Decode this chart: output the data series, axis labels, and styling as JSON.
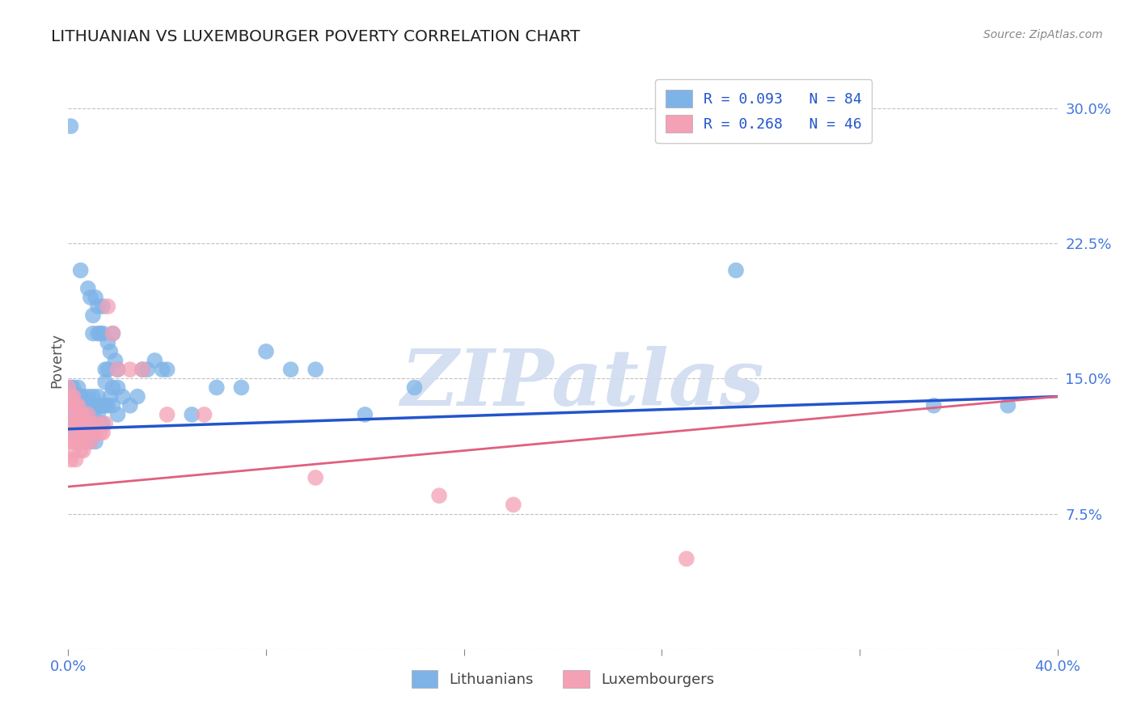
{
  "title": "LITHUANIAN VS LUXEMBOURGER POVERTY CORRELATION CHART",
  "source": "Source: ZipAtlas.com",
  "ylabel": "Poverty",
  "xlim": [
    0.0,
    0.4
  ],
  "ylim": [
    0.0,
    0.32
  ],
  "yticks": [
    0.0,
    0.075,
    0.15,
    0.225,
    0.3
  ],
  "ytick_labels": [
    "",
    "7.5%",
    "15.0%",
    "22.5%",
    "30.0%"
  ],
  "xticks": [
    0.0,
    0.08,
    0.16,
    0.24,
    0.32,
    0.4
  ],
  "xtick_labels": [
    "0.0%",
    "",
    "",
    "",
    "",
    "40.0%"
  ],
  "blue_color": "#7EB3E8",
  "pink_color": "#F4A0B5",
  "blue_line_color": "#2255CC",
  "pink_line_color": "#E0607E",
  "tick_label_color": "#4477DD",
  "background_color": "#FFFFFF",
  "watermark_text": "ZIPatlas",
  "watermark_color": "#D0DCF0",
  "legend_label_blue": "R = 0.093   N = 84",
  "legend_label_pink": "R = 0.268   N = 46",
  "bottom_legend_blue": "Lithuanians",
  "bottom_legend_pink": "Luxembourgers",
  "blue_trend_x": [
    0.0,
    0.4
  ],
  "blue_trend_y": [
    0.122,
    0.14
  ],
  "pink_trend_x": [
    0.0,
    0.4
  ],
  "pink_trend_y": [
    0.09,
    0.14
  ],
  "blue_scatter": [
    [
      0.001,
      0.29
    ],
    [
      0.005,
      0.21
    ],
    [
      0.008,
      0.2
    ],
    [
      0.009,
      0.195
    ],
    [
      0.01,
      0.185
    ],
    [
      0.01,
      0.175
    ],
    [
      0.011,
      0.195
    ],
    [
      0.012,
      0.19
    ],
    [
      0.012,
      0.175
    ],
    [
      0.013,
      0.175
    ],
    [
      0.014,
      0.19
    ],
    [
      0.014,
      0.175
    ],
    [
      0.015,
      0.155
    ],
    [
      0.015,
      0.148
    ],
    [
      0.016,
      0.17
    ],
    [
      0.016,
      0.155
    ],
    [
      0.017,
      0.165
    ],
    [
      0.018,
      0.175
    ],
    [
      0.018,
      0.145
    ],
    [
      0.019,
      0.16
    ],
    [
      0.02,
      0.155
    ],
    [
      0.02,
      0.145
    ],
    [
      0.001,
      0.145
    ],
    [
      0.001,
      0.135
    ],
    [
      0.002,
      0.145
    ],
    [
      0.002,
      0.135
    ],
    [
      0.002,
      0.125
    ],
    [
      0.003,
      0.14
    ],
    [
      0.003,
      0.13
    ],
    [
      0.003,
      0.12
    ],
    [
      0.004,
      0.145
    ],
    [
      0.004,
      0.135
    ],
    [
      0.004,
      0.125
    ],
    [
      0.005,
      0.14
    ],
    [
      0.005,
      0.13
    ],
    [
      0.005,
      0.12
    ],
    [
      0.006,
      0.14
    ],
    [
      0.006,
      0.13
    ],
    [
      0.006,
      0.12
    ],
    [
      0.007,
      0.135
    ],
    [
      0.007,
      0.125
    ],
    [
      0.007,
      0.115
    ],
    [
      0.008,
      0.14
    ],
    [
      0.008,
      0.13
    ],
    [
      0.008,
      0.12
    ],
    [
      0.009,
      0.135
    ],
    [
      0.009,
      0.125
    ],
    [
      0.009,
      0.115
    ],
    [
      0.01,
      0.14
    ],
    [
      0.01,
      0.13
    ],
    [
      0.01,
      0.12
    ],
    [
      0.011,
      0.135
    ],
    [
      0.011,
      0.125
    ],
    [
      0.011,
      0.115
    ],
    [
      0.012,
      0.14
    ],
    [
      0.012,
      0.13
    ],
    [
      0.013,
      0.135
    ],
    [
      0.013,
      0.125
    ],
    [
      0.014,
      0.135
    ],
    [
      0.014,
      0.125
    ],
    [
      0.015,
      0.135
    ],
    [
      0.016,
      0.135
    ],
    [
      0.017,
      0.14
    ],
    [
      0.018,
      0.135
    ],
    [
      0.02,
      0.13
    ],
    [
      0.022,
      0.14
    ],
    [
      0.025,
      0.135
    ],
    [
      0.028,
      0.14
    ],
    [
      0.03,
      0.155
    ],
    [
      0.032,
      0.155
    ],
    [
      0.035,
      0.16
    ],
    [
      0.038,
      0.155
    ],
    [
      0.04,
      0.155
    ],
    [
      0.05,
      0.13
    ],
    [
      0.06,
      0.145
    ],
    [
      0.07,
      0.145
    ],
    [
      0.08,
      0.165
    ],
    [
      0.09,
      0.155
    ],
    [
      0.1,
      0.155
    ],
    [
      0.12,
      0.13
    ],
    [
      0.14,
      0.145
    ],
    [
      0.27,
      0.21
    ],
    [
      0.35,
      0.135
    ],
    [
      0.38,
      0.135
    ]
  ],
  "pink_scatter": [
    [
      0.0,
      0.145
    ],
    [
      0.0,
      0.135
    ],
    [
      0.001,
      0.14
    ],
    [
      0.001,
      0.125
    ],
    [
      0.001,
      0.115
    ],
    [
      0.001,
      0.105
    ],
    [
      0.002,
      0.14
    ],
    [
      0.002,
      0.13
    ],
    [
      0.002,
      0.12
    ],
    [
      0.002,
      0.11
    ],
    [
      0.003,
      0.135
    ],
    [
      0.003,
      0.125
    ],
    [
      0.003,
      0.115
    ],
    [
      0.003,
      0.105
    ],
    [
      0.004,
      0.135
    ],
    [
      0.004,
      0.125
    ],
    [
      0.004,
      0.115
    ],
    [
      0.005,
      0.13
    ],
    [
      0.005,
      0.12
    ],
    [
      0.005,
      0.11
    ],
    [
      0.006,
      0.13
    ],
    [
      0.006,
      0.12
    ],
    [
      0.006,
      0.11
    ],
    [
      0.007,
      0.125
    ],
    [
      0.007,
      0.115
    ],
    [
      0.008,
      0.13
    ],
    [
      0.008,
      0.12
    ],
    [
      0.009,
      0.125
    ],
    [
      0.009,
      0.115
    ],
    [
      0.01,
      0.12
    ],
    [
      0.011,
      0.12
    ],
    [
      0.012,
      0.125
    ],
    [
      0.013,
      0.12
    ],
    [
      0.014,
      0.12
    ],
    [
      0.015,
      0.125
    ],
    [
      0.016,
      0.19
    ],
    [
      0.018,
      0.175
    ],
    [
      0.02,
      0.155
    ],
    [
      0.025,
      0.155
    ],
    [
      0.03,
      0.155
    ],
    [
      0.04,
      0.13
    ],
    [
      0.055,
      0.13
    ],
    [
      0.1,
      0.095
    ],
    [
      0.15,
      0.085
    ],
    [
      0.18,
      0.08
    ],
    [
      0.25,
      0.05
    ]
  ]
}
